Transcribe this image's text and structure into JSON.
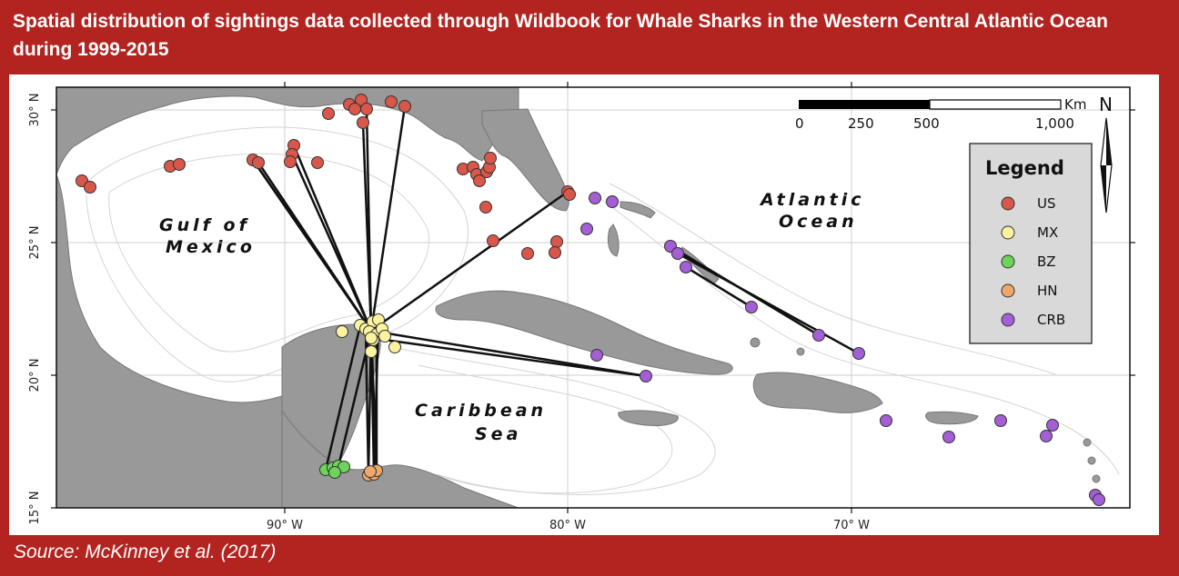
{
  "title": "Spatial distribution of  sightings data collected through Wildbook for Whale Sharks in the Western Central  Atlantic Ocean during 1999-2015",
  "source": "Source: McKinney et al. (2017)",
  "map": {
    "region_labels": [
      {
        "id": "gulf-of-mexico",
        "lines": [
          "Gulf of",
          "Mexico"
        ]
      },
      {
        "id": "caribbean-sea",
        "lines": [
          "Caribbean",
          "Sea"
        ]
      },
      {
        "id": "atlantic-ocean",
        "lines": [
          "Atlantic",
          "Ocean"
        ]
      }
    ],
    "lat_ticks": [
      "30° N",
      "25° N",
      "20° N",
      "15° N"
    ],
    "lon_ticks": [
      "90° W",
      "80° W",
      "70° W"
    ],
    "scale_bar": {
      "unit": "Km",
      "ticks": [
        "0",
        "250",
        "500",
        "1,000"
      ]
    },
    "north_arrow": "N",
    "legend": {
      "title": "Legend",
      "entries": [
        {
          "label": "US",
          "color": "#d9574a"
        },
        {
          "label": "MX",
          "color": "#fbf3a0"
        },
        {
          "label": "BZ",
          "color": "#6dd35a"
        },
        {
          "label": "HN",
          "color": "#f0a86a"
        },
        {
          "label": "CRB",
          "color": "#a45fd6"
        }
      ]
    },
    "colors": {
      "land": "#999999",
      "water": "#ffffff",
      "track": "#111111",
      "marker_stroke": "#333333"
    }
  }
}
